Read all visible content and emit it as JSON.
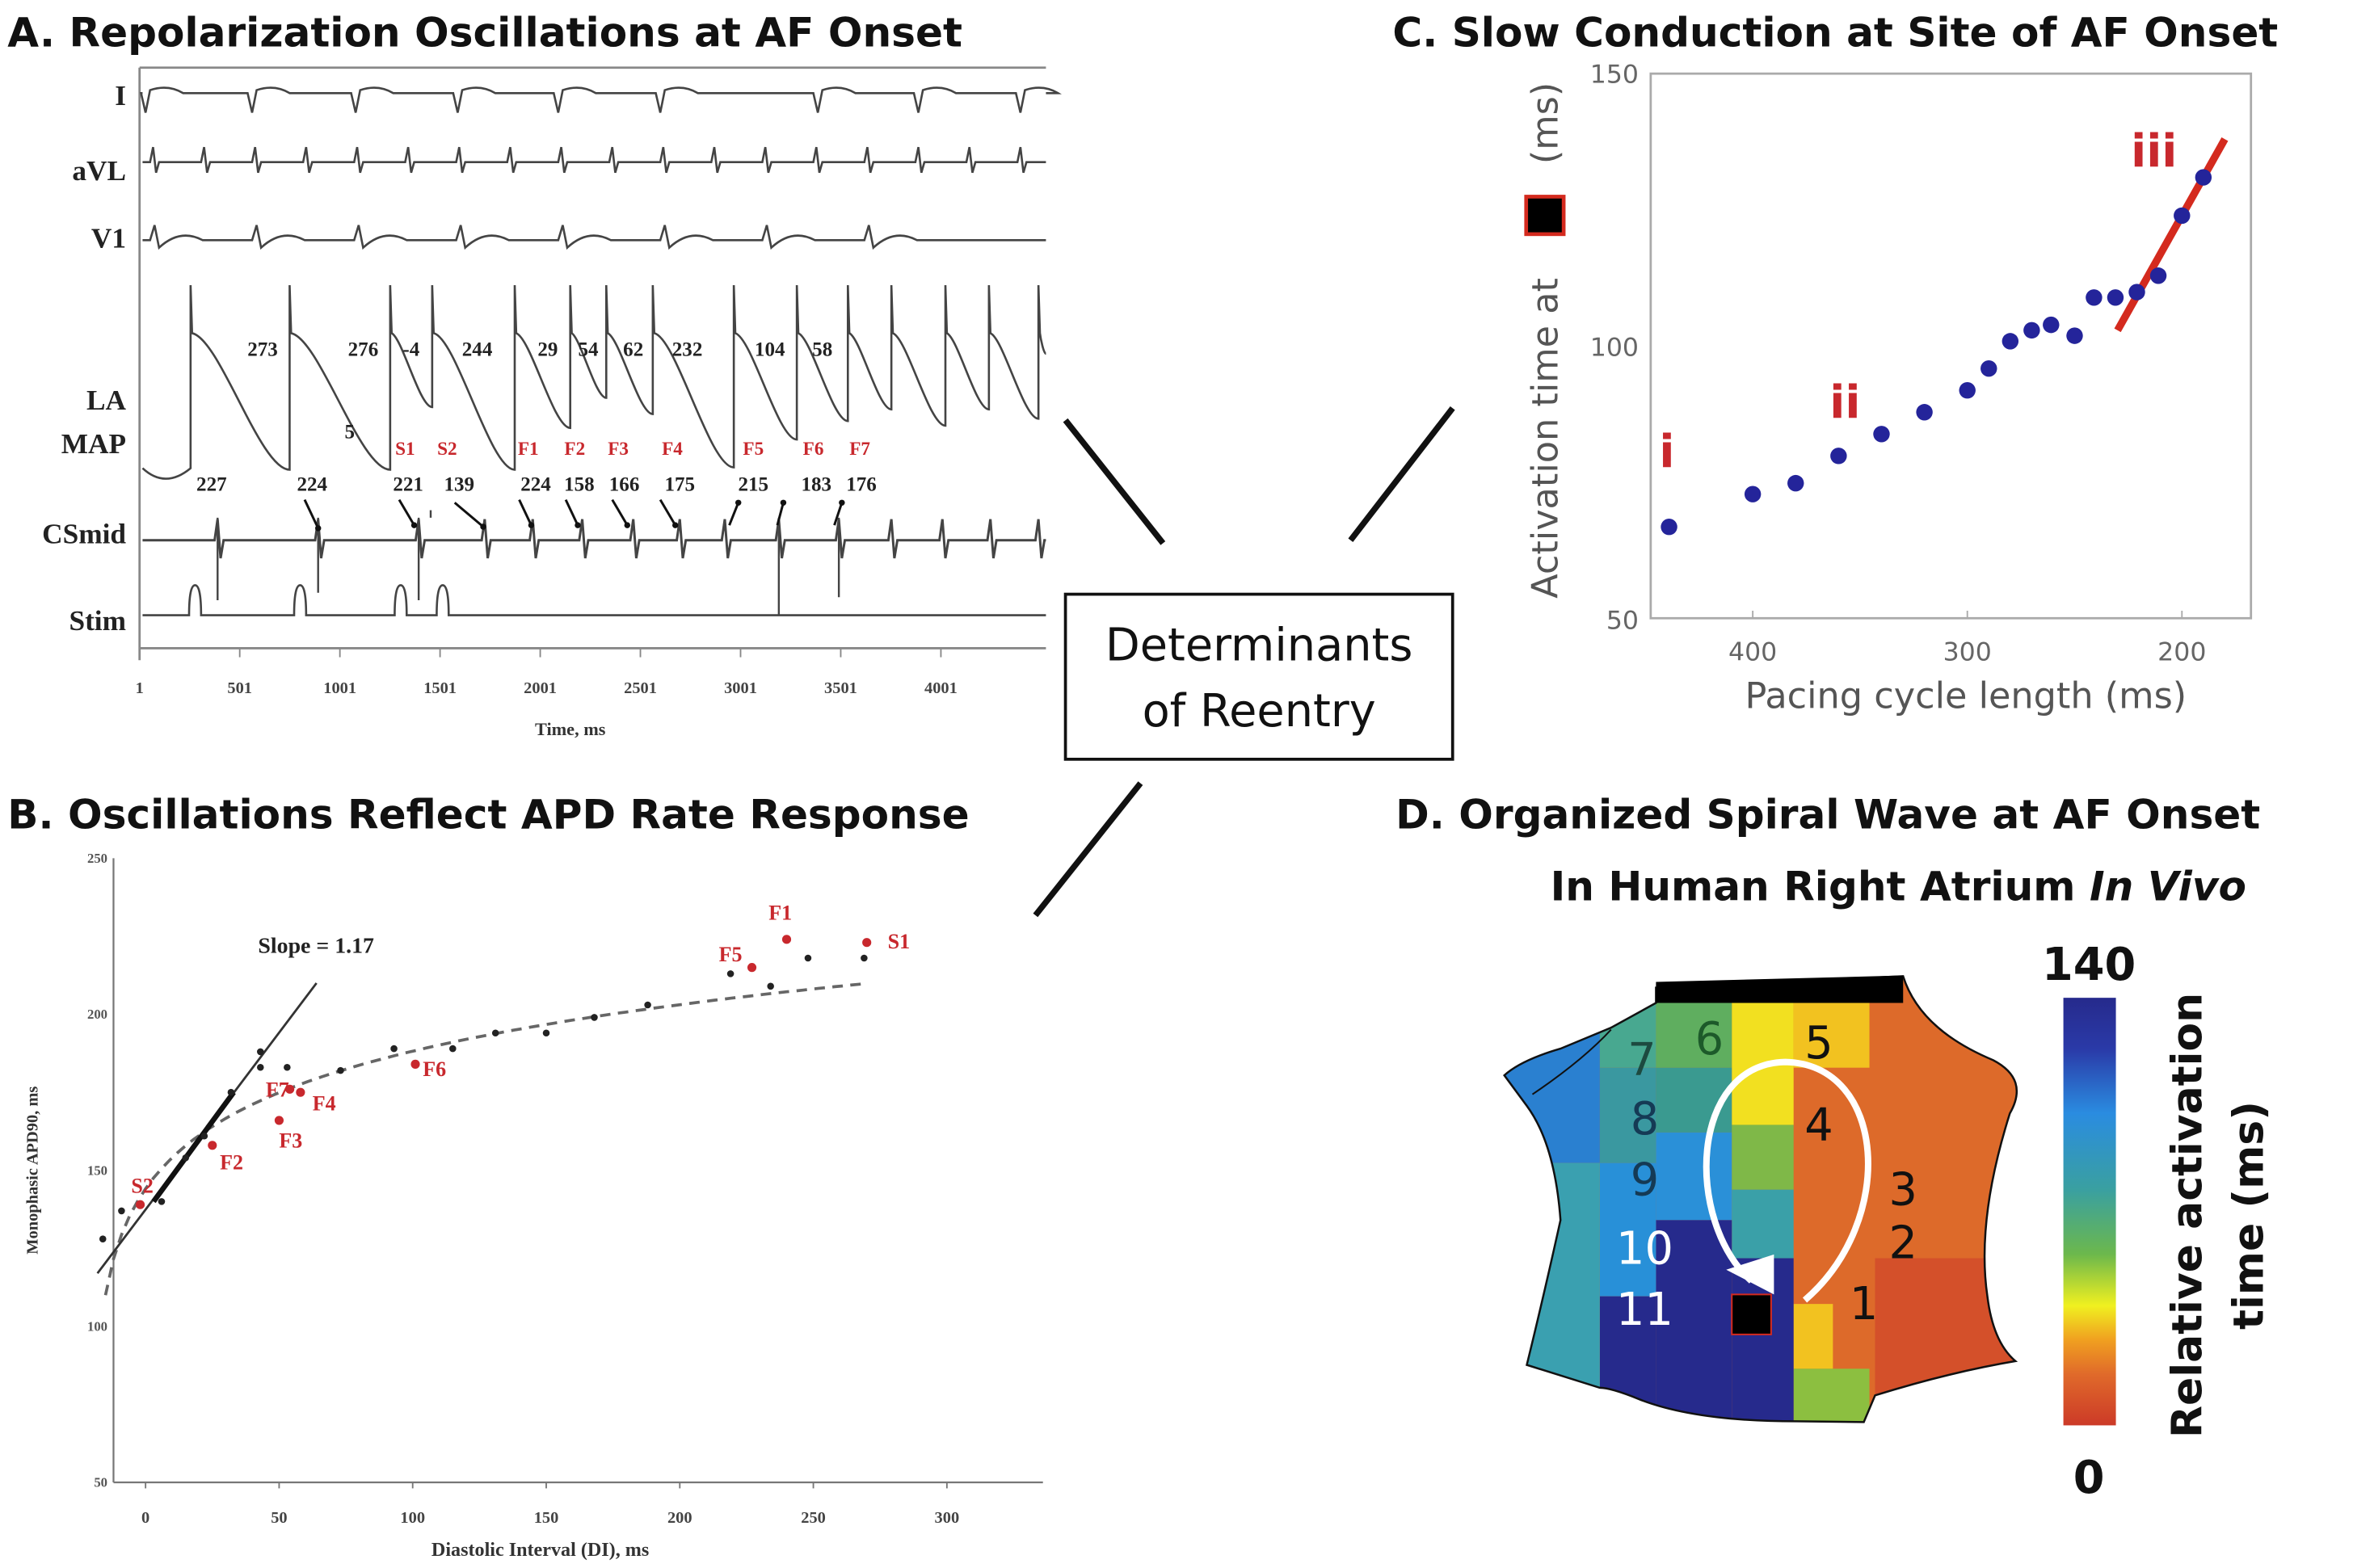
{
  "titles": {
    "a": "A. Repolarization Oscillations at AF Onset",
    "b": "B. Oscillations Reflect APD Rate Response",
    "c": "C. Slow Conduction at Site of AF Onset",
    "d_line1": "D. Organized Spiral Wave at AF Onset",
    "d_line2_plain": "In Human Right Atrium ",
    "d_line2_italic": "In Vivo"
  },
  "center_box": {
    "line1": "Determinants",
    "line2": "of Reentry"
  },
  "chart_data": [
    {
      "panel": "A",
      "type": "line",
      "xlabel": "Time, ms",
      "x_ticks": [
        "1",
        "501",
        "1001",
        "1501",
        "2001",
        "2501",
        "3001",
        "3501",
        "4001"
      ],
      "leads": [
        "I",
        "aVL",
        "V1",
        "LA",
        "MAP",
        "CSmid",
        "Stim"
      ],
      "apd_labels": [
        "273",
        "276",
        "-4",
        "244",
        "29",
        "54",
        "62",
        "232",
        "104",
        "58"
      ],
      "extra_label": "5",
      "beat_labels": [
        "S1",
        "S2",
        "F1",
        "F2",
        "F3",
        "F4",
        "F5",
        "F6",
        "F7"
      ],
      "di_labels": [
        "227",
        "224",
        "221",
        "139",
        "224",
        "158",
        "166",
        "175",
        "215",
        "183",
        "176"
      ],
      "colors": {
        "trace": "#444444",
        "beat_label": "#c8282d"
      }
    },
    {
      "panel": "B",
      "type": "scatter",
      "xlabel": "Diastolic Interval (DI), ms",
      "ylabel": "Monophasic APD90, ms",
      "xlim": [
        -12,
        335
      ],
      "ylim": [
        50,
        250
      ],
      "x_ticks": [
        "0",
        "50",
        "100",
        "150",
        "200",
        "250",
        "300"
      ],
      "y_ticks": [
        "50",
        "100",
        "150",
        "200",
        "250"
      ],
      "annotation": "Slope = 1.17",
      "slope_line": [
        [
          -18,
          117
        ],
        [
          64,
          210
        ]
      ],
      "fit_curve": "dashed logarithmic restitution fit",
      "black_points": [
        [
          -16,
          128
        ],
        [
          -9,
          137
        ],
        [
          6,
          140
        ],
        [
          15,
          154
        ],
        [
          22,
          161
        ],
        [
          32,
          175
        ],
        [
          43,
          188
        ],
        [
          43,
          183
        ],
        [
          53,
          183
        ],
        [
          73,
          182
        ],
        [
          93,
          189
        ],
        [
          115,
          189
        ],
        [
          131,
          194
        ],
        [
          150,
          194
        ],
        [
          168,
          199
        ],
        [
          188,
          203
        ],
        [
          219,
          213
        ],
        [
          234,
          209
        ],
        [
          248,
          218
        ],
        [
          269,
          218
        ]
      ],
      "red_points": [
        {
          "label": "S2",
          "x": -2,
          "y": 139
        },
        {
          "label": "F2",
          "x": 25,
          "y": 158
        },
        {
          "label": "F3",
          "x": 50,
          "y": 166
        },
        {
          "label": "F7",
          "x": 54,
          "y": 176
        },
        {
          "label": "F4",
          "x": 58,
          "y": 175
        },
        {
          "label": "F6",
          "x": 101,
          "y": 184
        },
        {
          "label": "F5",
          "x": 227,
          "y": 215
        },
        {
          "label": "F1",
          "x": 240,
          "y": 224
        },
        {
          "label": "S1",
          "x": 270,
          "y": 223
        }
      ],
      "colors": {
        "black": "#222222",
        "red": "#c8282d"
      }
    },
    {
      "panel": "C",
      "type": "scatter",
      "xlabel": "Pacing cycle length (ms)",
      "ylabel_pre": "Activation time at",
      "ylabel_post": "(ms)",
      "x_reversed": true,
      "xlim": [
        447,
        160
      ],
      "ylim": [
        50,
        150
      ],
      "x_ticks": [
        "400",
        "300",
        "200"
      ],
      "y_ticks": [
        "50",
        "100",
        "150"
      ],
      "points": [
        [
          439,
          67
        ],
        [
          400,
          73
        ],
        [
          380,
          75
        ],
        [
          360,
          80
        ],
        [
          340,
          84
        ],
        [
          320,
          88
        ],
        [
          300,
          92
        ],
        [
          290,
          96
        ],
        [
          280,
          101
        ],
        [
          270,
          103
        ],
        [
          261,
          104
        ],
        [
          250,
          102
        ],
        [
          241,
          109
        ],
        [
          231,
          109
        ],
        [
          221,
          110
        ],
        [
          211,
          113
        ],
        [
          200,
          124
        ],
        [
          190,
          131
        ]
      ],
      "fit_line": [
        [
          230,
          103
        ],
        [
          180,
          138
        ]
      ],
      "annotations": [
        {
          "text": "i",
          "x": 440,
          "y": 78
        },
        {
          "text": "ii",
          "x": 357,
          "y": 87
        },
        {
          "text": "iii",
          "x": 213,
          "y": 133
        }
      ],
      "colors": {
        "points": "#24249a",
        "line": "#d42a1e",
        "labels": "#c8282d"
      }
    },
    {
      "panel": "D",
      "type": "heatmap",
      "colorbar": {
        "max_label": "140",
        "min_label": "0",
        "label_line1": "Relative activation",
        "label_line2": "time (ms)",
        "range": [
          0,
          140
        ]
      },
      "sequence_labels": [
        "1",
        "2",
        "3",
        "4",
        "5",
        "6",
        "7",
        "8",
        "9",
        "10",
        "11"
      ],
      "colors": {
        "early": "#cc3a28",
        "late": "#262a8c",
        "arrow": "#ffffff",
        "site_marker": "#000000",
        "site_border": "#d42a1e"
      }
    }
  ]
}
